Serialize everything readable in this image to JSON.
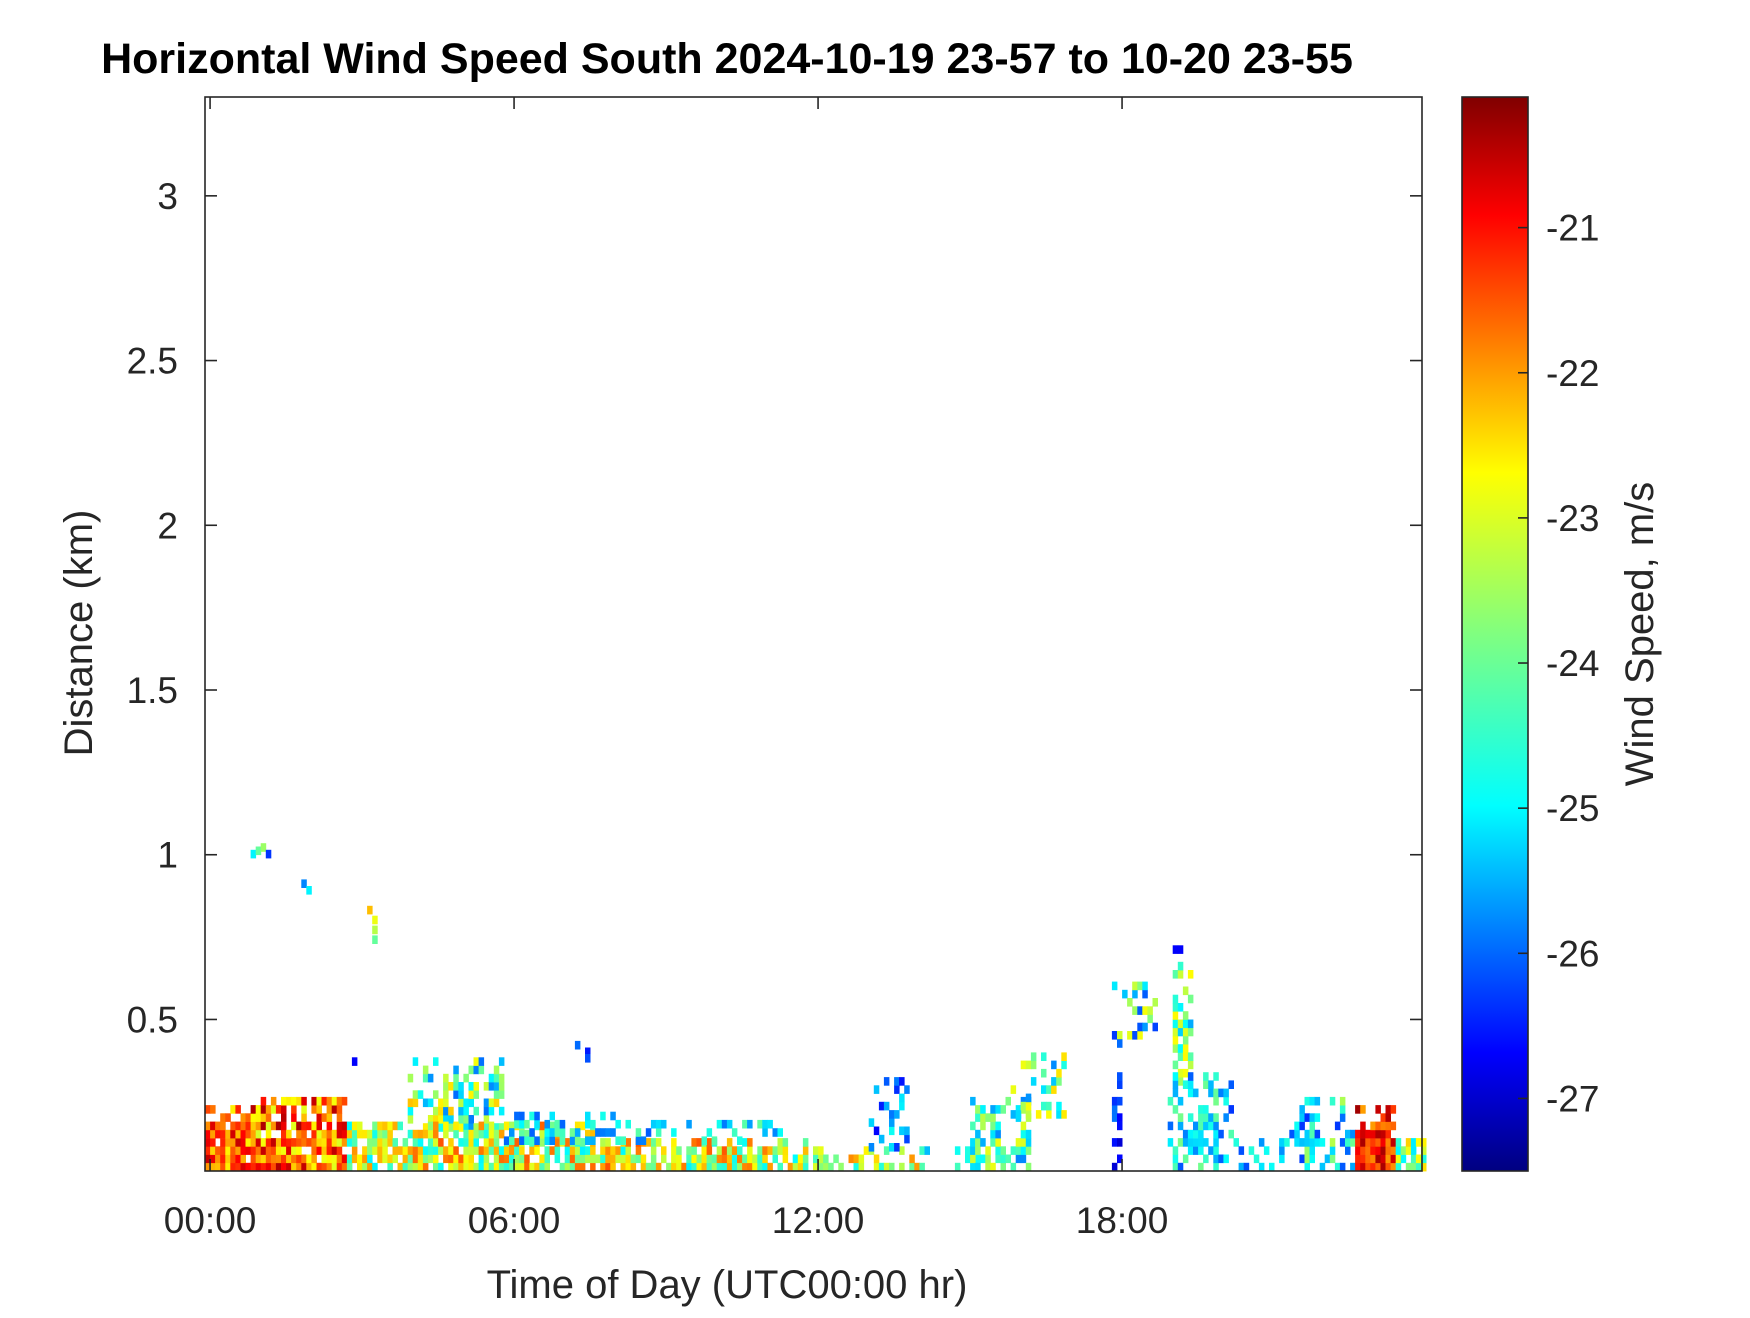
{
  "chart_data": {
    "type": "heatmap",
    "title": "Horizontal Wind Speed South 2024-10-19 23-57 to 10-20 23-55",
    "xlabel": "Time of Day (UTC00:00 hr)",
    "ylabel": "Distance (km)",
    "x_ticks": [
      "00:00",
      "06:00",
      "12:00",
      "18:00"
    ],
    "x_tick_values_hr": [
      0,
      6,
      12,
      18
    ],
    "xlim_hr": [
      -0.1,
      23.92
    ],
    "y_ticks": [
      "0.5",
      "1",
      "1.5",
      "2",
      "2.5",
      "3"
    ],
    "y_tick_values": [
      0.5,
      1,
      1.5,
      2,
      2.5,
      3
    ],
    "ylim": [
      0.04,
      3.3
    ],
    "colorbar": {
      "label": "Wind Speed, m/s",
      "ticks": [
        "-21",
        "-22",
        "-23",
        "-24",
        "-25",
        "-26",
        "-27"
      ],
      "tick_values": [
        -21,
        -22,
        -23,
        -24,
        -25,
        -26,
        -27
      ],
      "range": [
        -27.5,
        -20.1
      ],
      "colormap": "jet"
    },
    "cell_size": {
      "dt_hr": 0.1,
      "dz_km": 0.025
    },
    "regions": [
      {
        "t0": -0.1,
        "t1": 0.8,
        "z0": 0.04,
        "z1": 0.24,
        "vmin": -22.8,
        "vmax": -20.6,
        "density": 0.97
      },
      {
        "t0": 0.8,
        "t1": 2.7,
        "z0": 0.04,
        "z1": 0.26,
        "vmin": -23.2,
        "vmax": -20.4,
        "density": 0.97
      },
      {
        "t0": 2.7,
        "t1": 4.0,
        "z0": 0.04,
        "z1": 0.18,
        "vmin": -24.8,
        "vmax": -22.0,
        "density": 0.75
      },
      {
        "t0": 3.9,
        "t1": 5.8,
        "z0": 0.16,
        "z1": 0.38,
        "vmin": -25.8,
        "vmax": -22.4,
        "density": 0.6
      },
      {
        "t0": 4.0,
        "t1": 7.6,
        "z0": 0.04,
        "z1": 0.18,
        "vmin": -24.8,
        "vmax": -21.6,
        "density": 0.88
      },
      {
        "t0": 5.8,
        "t1": 8.0,
        "z0": 0.12,
        "z1": 0.2,
        "vmin": -25.9,
        "vmax": -23.8,
        "density": 0.5
      },
      {
        "t0": 7.6,
        "t1": 11.8,
        "z0": 0.04,
        "z1": 0.13,
        "vmin": -24.8,
        "vmax": -21.6,
        "density": 0.82
      },
      {
        "t0": 8.0,
        "t1": 11.3,
        "z0": 0.12,
        "z1": 0.18,
        "vmin": -25.9,
        "vmax": -24.0,
        "density": 0.3
      },
      {
        "t0": 11.8,
        "t1": 14.0,
        "z0": 0.04,
        "z1": 0.1,
        "vmin": -24.8,
        "vmax": -21.8,
        "density": 0.6
      },
      {
        "t0": 13.0,
        "t1": 13.8,
        "z0": 0.1,
        "z1": 0.32,
        "vmin": -26.6,
        "vmax": -24.6,
        "density": 0.3
      },
      {
        "t0": 14.0,
        "t1": 15.2,
        "z0": 0.04,
        "z1": 0.1,
        "vmin": -25.4,
        "vmax": -24.0,
        "density": 0.4
      },
      {
        "t0": 15.0,
        "t1": 16.2,
        "z0": 0.04,
        "z1": 0.26,
        "vmin": -25.6,
        "vmax": -23.0,
        "density": 0.6
      },
      {
        "t0": 15.8,
        "t1": 16.9,
        "z0": 0.2,
        "z1": 0.38,
        "vmin": -25.6,
        "vmax": -22.6,
        "density": 0.4
      },
      {
        "t0": 17.8,
        "t1": 18.7,
        "z0": 0.44,
        "z1": 0.6,
        "vmin": -26.4,
        "vmax": -22.8,
        "density": 0.55
      },
      {
        "t0": 19.0,
        "t1": 19.4,
        "z0": 0.3,
        "z1": 0.68,
        "vmin": -25.4,
        "vmax": -22.8,
        "density": 0.6
      },
      {
        "t0": 17.8,
        "t1": 18.0,
        "z0": 0.04,
        "z1": 0.44,
        "vmin": -27.0,
        "vmax": -25.6,
        "density": 0.28
      },
      {
        "t0": 18.9,
        "t1": 20.2,
        "z0": 0.04,
        "z1": 0.32,
        "vmin": -26.2,
        "vmax": -23.8,
        "density": 0.55
      },
      {
        "t0": 20.2,
        "t1": 21.2,
        "z0": 0.04,
        "z1": 0.12,
        "vmin": -26.4,
        "vmax": -24.4,
        "density": 0.4
      },
      {
        "t0": 21.2,
        "t1": 22.6,
        "z0": 0.04,
        "z1": 0.26,
        "vmin": -26.4,
        "vmax": -23.4,
        "density": 0.45
      },
      {
        "t0": 22.6,
        "t1": 23.4,
        "z0": 0.04,
        "z1": 0.22,
        "vmin": -22.2,
        "vmax": -20.3,
        "density": 0.97
      },
      {
        "t0": 23.4,
        "t1": 23.92,
        "z0": 0.04,
        "z1": 0.14,
        "vmin": -25.2,
        "vmax": -22.4,
        "density": 0.9
      }
    ],
    "sparse_points": [
      {
        "t": 0.8,
        "z": 0.99,
        "v": -24.8
      },
      {
        "t": 0.9,
        "z": 1.0,
        "v": -24.0
      },
      {
        "t": 1.0,
        "z": 1.01,
        "v": -23.6
      },
      {
        "t": 1.1,
        "z": 0.99,
        "v": -26.2
      },
      {
        "t": 1.8,
        "z": 0.9,
        "v": -25.6
      },
      {
        "t": 1.9,
        "z": 0.88,
        "v": -24.8
      },
      {
        "t": 3.1,
        "z": 0.82,
        "v": -22.4
      },
      {
        "t": 3.2,
        "z": 0.79,
        "v": -23.0
      },
      {
        "t": 3.2,
        "z": 0.76,
        "v": -23.4
      },
      {
        "t": 3.2,
        "z": 0.73,
        "v": -24.0
      },
      {
        "t": 7.2,
        "z": 0.41,
        "v": -25.8
      },
      {
        "t": 7.4,
        "z": 0.39,
        "v": -26.4
      },
      {
        "t": 7.4,
        "z": 0.37,
        "v": -26.0
      },
      {
        "t": 2.8,
        "z": 0.36,
        "v": -26.6
      },
      {
        "t": 19.0,
        "z": 0.7,
        "v": -26.6
      },
      {
        "t": 19.1,
        "z": 0.7,
        "v": -26.6
      }
    ]
  }
}
